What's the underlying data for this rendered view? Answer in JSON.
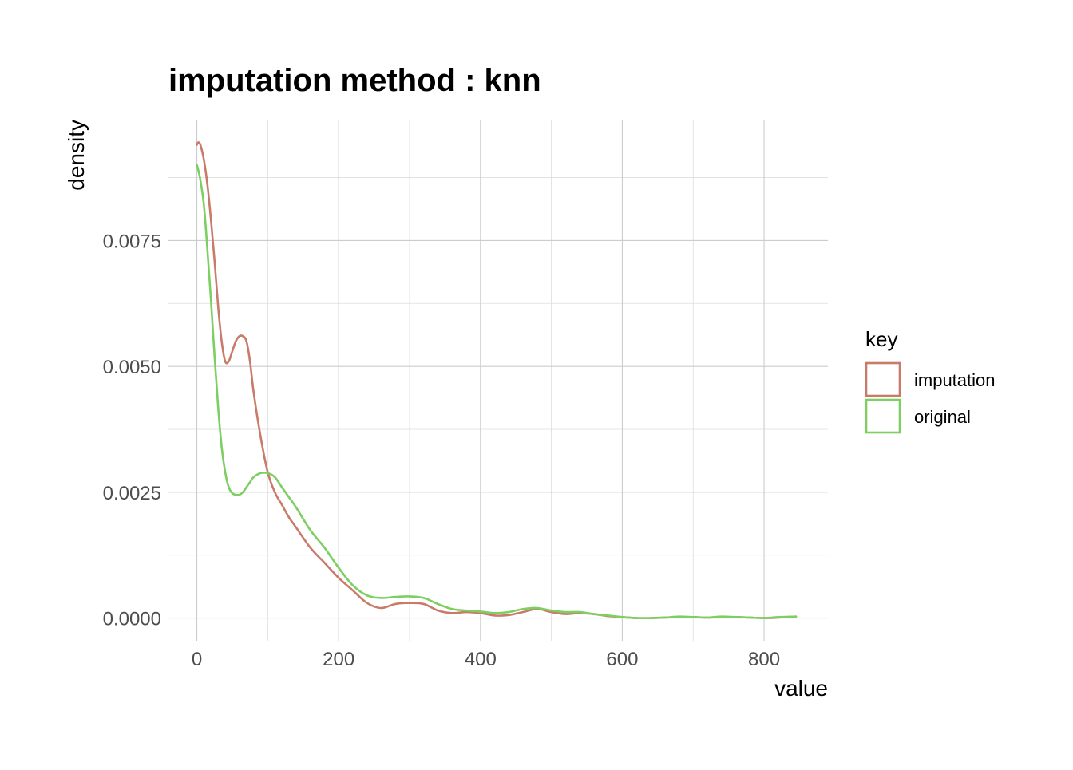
{
  "chart_data": {
    "type": "line",
    "title": "imputation method : knn",
    "xlabel": "value",
    "ylabel": "density",
    "xlim": [
      -40,
      890
    ],
    "ylim": [
      -0.00045,
      0.0099
    ],
    "x_ticks": [
      0,
      200,
      400,
      600,
      800
    ],
    "x_tick_labels": [
      "0",
      "200",
      "400",
      "600",
      "800"
    ],
    "y_ticks": [
      0,
      0.0025,
      0.005,
      0.0075
    ],
    "y_tick_labels": [
      "0.0000",
      "0.0025",
      "0.0050",
      "0.0075"
    ],
    "x_minor": [
      100,
      300,
      500,
      700
    ],
    "y_minor": [
      0.00125,
      0.00375,
      0.00625,
      0.00875
    ],
    "grid": true,
    "legend": {
      "title": "key",
      "position": "right"
    },
    "series": [
      {
        "name": "imputation",
        "color": "#c97b6a",
        "x": [
          0,
          2,
          5,
          10,
          15,
          20,
          25,
          30,
          35,
          40,
          45,
          50,
          55,
          60,
          65,
          70,
          75,
          80,
          90,
          100,
          110,
          120,
          130,
          140,
          160,
          180,
          200,
          220,
          240,
          260,
          280,
          300,
          320,
          340,
          360,
          380,
          400,
          420,
          440,
          460,
          480,
          500,
          520,
          540,
          560,
          580,
          600,
          620,
          640,
          660,
          680,
          700,
          720,
          740,
          760,
          780,
          800,
          820,
          845
        ],
        "y": [
          0.0094,
          0.00945,
          0.0094,
          0.0091,
          0.0086,
          0.0079,
          0.0071,
          0.0062,
          0.0055,
          0.0051,
          0.0051,
          0.0053,
          0.0055,
          0.0056,
          0.0056,
          0.0055,
          0.0051,
          0.0045,
          0.0036,
          0.0029,
          0.0025,
          0.00225,
          0.002,
          0.0018,
          0.0014,
          0.0011,
          0.0008,
          0.00055,
          0.0003,
          0.0002,
          0.00028,
          0.0003,
          0.00028,
          0.00015,
          0.0001,
          0.00012,
          0.0001,
          5e-05,
          6e-05,
          0.00012,
          0.00018,
          0.00012,
          8e-05,
          0.0001,
          8e-05,
          4e-05,
          2e-05,
          0.0,
          0.0,
          1e-05,
          2e-05,
          2e-05,
          1e-05,
          2e-05,
          2e-05,
          1e-05,
          0.0,
          1e-05,
          3e-05
        ]
      },
      {
        "name": "original",
        "color": "#7ccf60",
        "x": [
          0,
          2,
          5,
          10,
          15,
          20,
          25,
          30,
          35,
          40,
          45,
          50,
          55,
          60,
          65,
          70,
          75,
          80,
          90,
          100,
          110,
          120,
          130,
          140,
          160,
          180,
          200,
          220,
          240,
          260,
          280,
          300,
          320,
          340,
          360,
          380,
          400,
          420,
          440,
          460,
          480,
          500,
          520,
          540,
          560,
          580,
          600,
          620,
          640,
          660,
          680,
          700,
          720,
          740,
          760,
          780,
          800,
          820,
          845
        ],
        "y": [
          0.009,
          0.0089,
          0.0087,
          0.0082,
          0.0073,
          0.0063,
          0.0052,
          0.0042,
          0.0034,
          0.0029,
          0.0026,
          0.00248,
          0.00245,
          0.00245,
          0.0025,
          0.0026,
          0.0027,
          0.0028,
          0.00288,
          0.00288,
          0.0028,
          0.0026,
          0.0024,
          0.0022,
          0.00175,
          0.0014,
          0.001,
          0.00065,
          0.00045,
          0.0004,
          0.00042,
          0.00043,
          0.0004,
          0.00028,
          0.00018,
          0.00015,
          0.00013,
          0.0001,
          0.00012,
          0.00018,
          0.0002,
          0.00015,
          0.00012,
          0.00012,
          8e-05,
          5e-05,
          2e-05,
          0.0,
          0.0,
          1e-05,
          3e-05,
          2e-05,
          1e-05,
          3e-05,
          2e-05,
          1e-05,
          0.0,
          2e-05,
          3e-05
        ]
      }
    ]
  }
}
